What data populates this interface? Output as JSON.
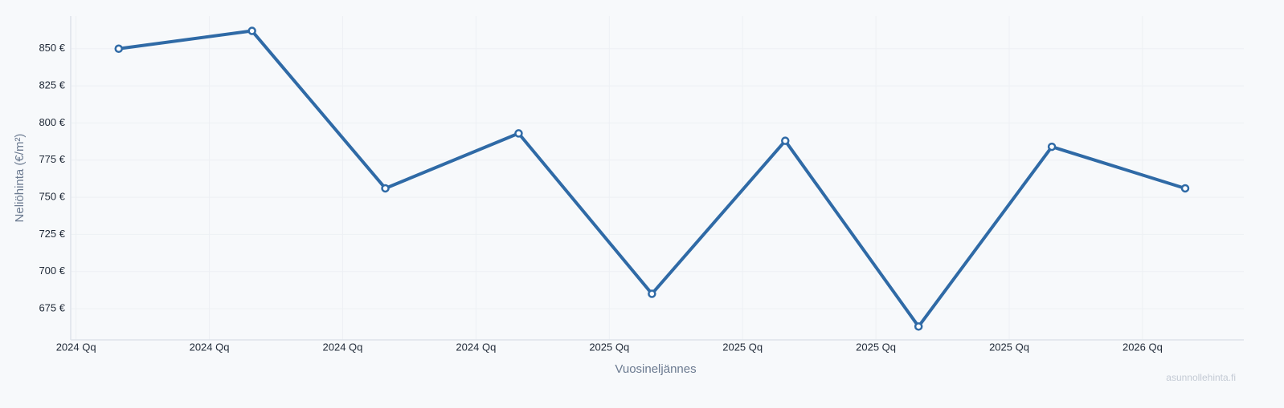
{
  "chart_data": {
    "type": "line",
    "y_label": "Neliöhinta (€/m²)",
    "x_label": "Vuosineljännes",
    "watermark": "asunnollehinta.fi",
    "x": [
      2024.08,
      2024.33,
      2024.58,
      2024.83,
      2025.08,
      2025.33,
      2025.58,
      2025.83,
      2026.08
    ],
    "series": [
      {
        "color": "#2f6aa6",
        "values": [
          850,
          862,
          756,
          793,
          685,
          788,
          663,
          784,
          756
        ]
      }
    ],
    "xlim": [
      2023.99,
      2026.19
    ],
    "xticks": [
      {
        "value": 2024,
        "label": "2024 Qq"
      },
      {
        "value": 2024.25,
        "label": "2024 Qq"
      },
      {
        "value": 2024.5,
        "label": "2024 Qq"
      },
      {
        "value": 2024.75,
        "label": "2024 Qq"
      },
      {
        "value": 2025,
        "label": "2025 Qq"
      },
      {
        "value": 2025.25,
        "label": "2025 Qq"
      },
      {
        "value": 2025.5,
        "label": "2025 Qq"
      },
      {
        "value": 2025.75,
        "label": "2025 Qq"
      },
      {
        "value": 2026,
        "label": "2026 Qq"
      }
    ],
    "ylim": [
      654,
      872
    ],
    "yticks": [
      {
        "value": 675,
        "label": "675 €"
      },
      {
        "value": 700,
        "label": "700 €"
      },
      {
        "value": 725,
        "label": "725 €"
      },
      {
        "value": 750,
        "label": "750 €"
      },
      {
        "value": 775,
        "label": "775 €"
      },
      {
        "value": 800,
        "label": "800 €"
      },
      {
        "value": 825,
        "label": "825 €"
      },
      {
        "value": 850,
        "label": "850 €"
      }
    ],
    "grid": true
  }
}
